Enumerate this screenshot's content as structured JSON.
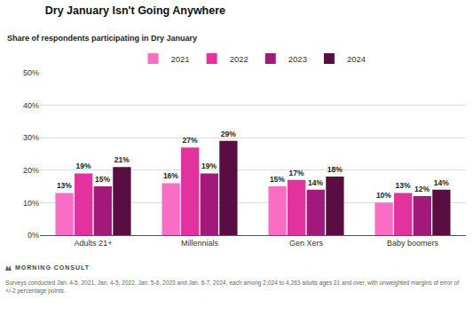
{
  "chart_data": {
    "type": "bar",
    "title": "Dry January Isn't Going Anywhere",
    "subtitle": "Share of respondents participating in Dry January",
    "categories": [
      "Adults 21+",
      "Millennials",
      "Gen Xers",
      "Baby boomers"
    ],
    "series": [
      {
        "name": "2021",
        "color": "#fa6dc4",
        "values": [
          13,
          16,
          15,
          10
        ],
        "value_labels": [
          "13%",
          "16%",
          "15%",
          "10%"
        ]
      },
      {
        "name": "2022",
        "color": "#e2329d",
        "values": [
          19,
          27,
          17,
          13
        ],
        "value_labels": [
          "19%",
          "27%",
          "17%",
          "13%"
        ]
      },
      {
        "name": "2023",
        "color": "#a0197b",
        "values": [
          15,
          19,
          14,
          12
        ],
        "value_labels": [
          "15%",
          "19%",
          "14%",
          "12%"
        ]
      },
      {
        "name": "2024",
        "color": "#5a0d42",
        "values": [
          21,
          29,
          18,
          14
        ],
        "value_labels": [
          "21%",
          "29%",
          "18%",
          "14%"
        ]
      }
    ],
    "ylim": [
      0,
      50
    ],
    "yticks": [
      {
        "value": 0,
        "label": "0%"
      },
      {
        "value": 10,
        "label": "10%"
      },
      {
        "value": 20,
        "label": "20%"
      },
      {
        "value": 30,
        "label": "30%"
      },
      {
        "value": 40,
        "label": "40%"
      },
      {
        "value": 50,
        "label": "50%"
      }
    ],
    "grid": true,
    "legend": "top",
    "data_labels": true,
    "annotations": [
      "MORNING CONSULT",
      "Surveys conducted Jan. 4-5, 2021, Jan. 4-5, 2022, Jan. 5-6, 2023 and Jan. 6-7, 2024, each among 2,024 to 4,263 adults ages 21 and over, with unweighted margins of error of +/-2 percentage points."
    ]
  }
}
